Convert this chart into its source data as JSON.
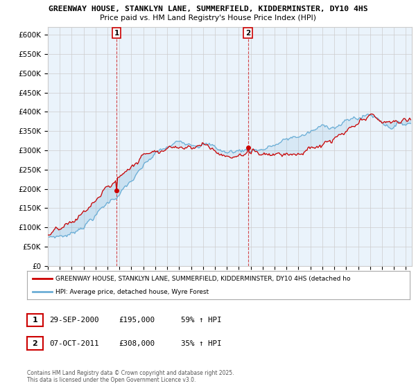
{
  "title": "GREENWAY HOUSE, STANKLYN LANE, SUMMERFIELD, KIDDERMINSTER, DY10 4HS",
  "subtitle": "Price paid vs. HM Land Registry's House Price Index (HPI)",
  "legend_line1": "GREENWAY HOUSE, STANKLYN LANE, SUMMERFIELD, KIDDERMINSTER, DY10 4HS (detached ho",
  "legend_line2": "HPI: Average price, detached house, Wyre Forest",
  "annotation1_date": "29-SEP-2000",
  "annotation1_price": "£195,000",
  "annotation1_hpi": "59% ↑ HPI",
  "annotation2_date": "07-OCT-2011",
  "annotation2_price": "£308,000",
  "annotation2_hpi": "35% ↑ HPI",
  "footer": "Contains HM Land Registry data © Crown copyright and database right 2025.\nThis data is licensed under the Open Government Licence v3.0.",
  "red_color": "#cc0000",
  "blue_color": "#6baed6",
  "fill_color": "#ddeeff",
  "vline_color": "#cc0000",
  "grid_color": "#cccccc",
  "chart_bg": "#eaf3fb",
  "fig_bg": "#ffffff",
  "ylim": [
    0,
    620000
  ],
  "ytick_step": 50000,
  "sale1_year": 2000.75,
  "sale1_price": 195000,
  "sale2_year": 2011.77,
  "sale2_price": 308000
}
